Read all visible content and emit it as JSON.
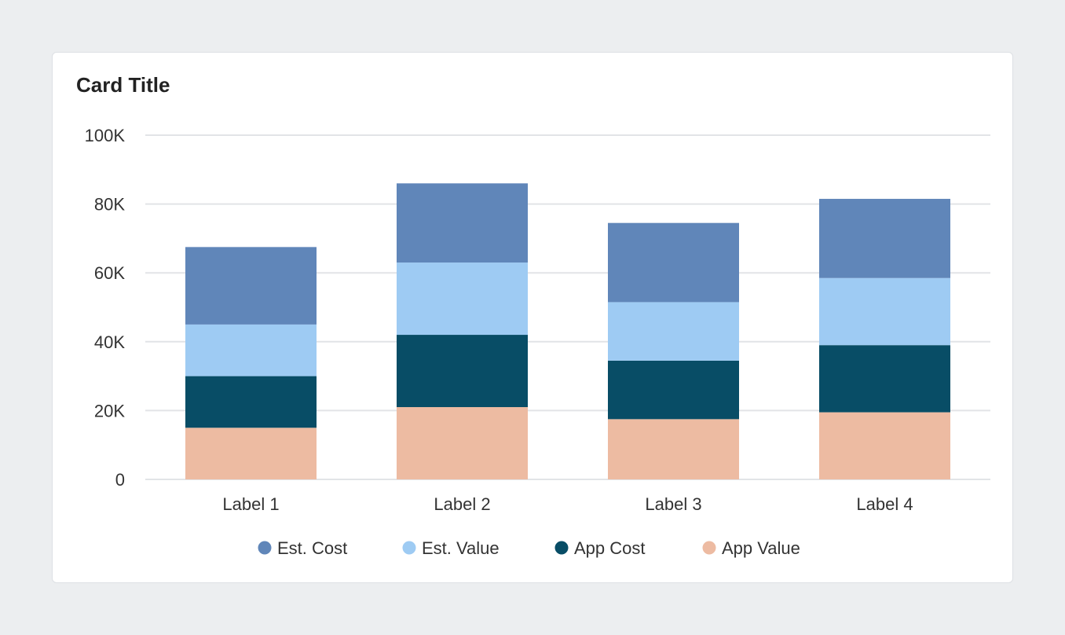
{
  "card": {
    "title": "Card Title"
  },
  "colors": {
    "page_background": "#eceef0",
    "card_background": "#ffffff",
    "grid": "#e2e4e7"
  },
  "chart_data": {
    "type": "bar",
    "stacked": true,
    "categories": [
      "Label 1",
      "Label 2",
      "Label 3",
      "Label 4"
    ],
    "series": [
      {
        "name": "App Value",
        "color": "#edbba2",
        "values": [
          15000,
          21000,
          17500,
          19500
        ]
      },
      {
        "name": "App Cost",
        "color": "#084d66",
        "values": [
          15000,
          21000,
          17000,
          19500
        ]
      },
      {
        "name": "Est. Value",
        "color": "#9ecbf3",
        "values": [
          15000,
          21000,
          17000,
          19500
        ]
      },
      {
        "name": "Est. Cost",
        "color": "#6086b9",
        "values": [
          22500,
          23000,
          23000,
          23000
        ]
      }
    ],
    "legend_order": [
      "Est. Cost",
      "Est. Value",
      "App Cost",
      "App Value"
    ],
    "ylim": [
      0,
      100000
    ],
    "yticks": [
      0,
      20000,
      40000,
      60000,
      80000,
      100000
    ],
    "ytick_labels": [
      "0",
      "20K",
      "40K",
      "60K",
      "80K",
      "100K"
    ],
    "grid": true,
    "legend_position": "bottom"
  }
}
